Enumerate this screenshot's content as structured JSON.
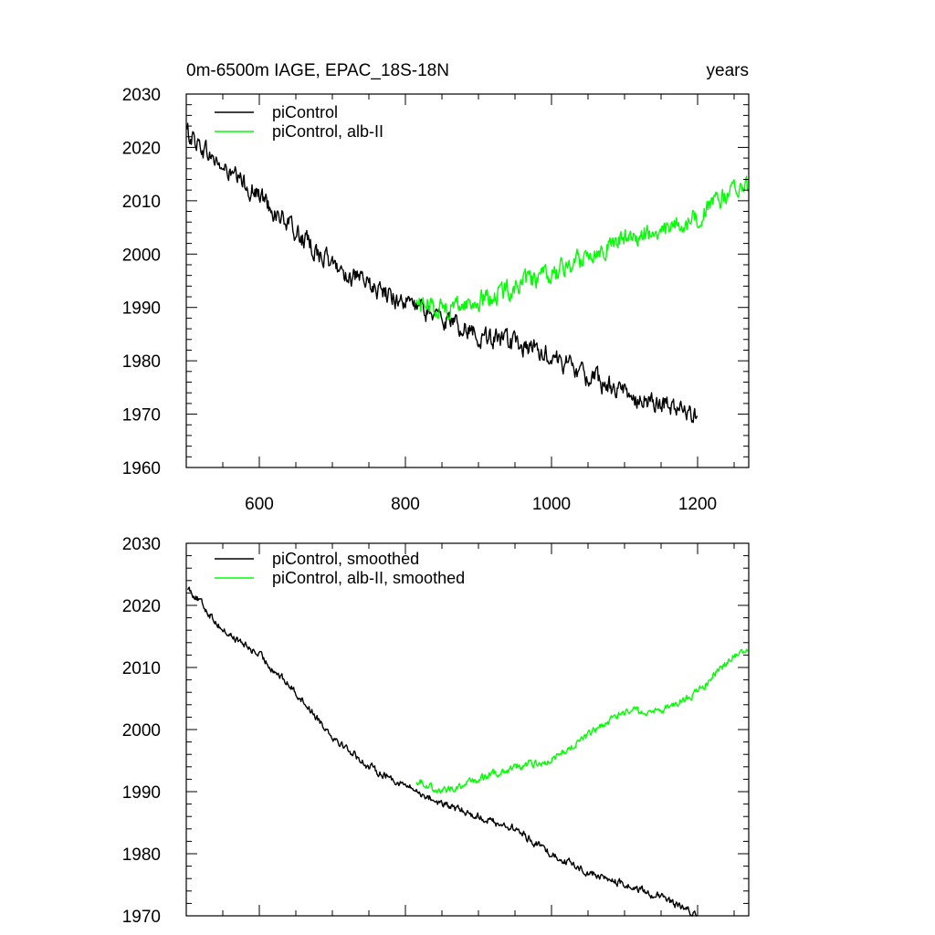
{
  "chart_data": [
    {
      "type": "line",
      "title_left": "0m-6500m IAGE, EPAC_18S-18N",
      "title_right": "years",
      "xlim": [
        500,
        1270
      ],
      "ylim": [
        1960,
        2030
      ],
      "x_ticks": [
        600,
        800,
        1000,
        1200
      ],
      "x_tick_labels": [
        "600",
        "800",
        "1000",
        "1200"
      ],
      "y_ticks": [
        1960,
        1970,
        1980,
        1990,
        2000,
        2010,
        2020,
        2030
      ],
      "y_tick_labels": [
        "1960",
        "1970",
        "1980",
        "1990",
        "2000",
        "2010",
        "2020",
        "2030"
      ],
      "legend_position": "top-left",
      "series": [
        {
          "name": "piControl",
          "color": "#000000",
          "x_range": [
            501,
            1200
          ],
          "noise_amplitude": 1.5,
          "anchors": [
            [
              501,
              2023
            ],
            [
              550,
              2016
            ],
            [
              600,
              2011
            ],
            [
              650,
              2004
            ],
            [
              700,
              1998
            ],
            [
              750,
              1994
            ],
            [
              800,
              1991
            ],
            [
              850,
              1988
            ],
            [
              900,
              1985
            ],
            [
              950,
              1983
            ],
            [
              1000,
              1981
            ],
            [
              1050,
              1977
            ],
            [
              1100,
              1974
            ],
            [
              1150,
              1972
            ],
            [
              1200,
              1970
            ]
          ]
        },
        {
          "name": "piControl, alb-II",
          "color": "#00ff00",
          "x_range": [
            815,
            1270
          ],
          "noise_amplitude": 1.5,
          "anchors": [
            [
              815,
              1991
            ],
            [
              850,
              1990
            ],
            [
              900,
              1991
            ],
            [
              950,
              1994
            ],
            [
              1000,
              1996
            ],
            [
              1050,
              2000
            ],
            [
              1100,
              2003
            ],
            [
              1150,
              2004
            ],
            [
              1200,
              2007
            ],
            [
              1250,
              2012
            ],
            [
              1270,
              2013
            ]
          ]
        }
      ]
    },
    {
      "type": "line",
      "xlim": [
        500,
        1270
      ],
      "ylim": [
        1970,
        2030
      ],
      "x_ticks": [
        600,
        800,
        1000,
        1200
      ],
      "y_ticks": [
        1970,
        1980,
        1990,
        2000,
        2010,
        2020,
        2030
      ],
      "y_tick_labels": [
        "1970",
        "1980",
        "1990",
        "2000",
        "2010",
        "2020",
        "2030"
      ],
      "legend_position": "top-left",
      "series": [
        {
          "name": "piControl, smoothed",
          "color": "#000000",
          "x_range": [
            502,
            1200
          ],
          "noise_amplitude": 0.5,
          "anchors": [
            [
              502,
              2023
            ],
            [
              550,
              2016
            ],
            [
              600,
              2012
            ],
            [
              650,
              2006
            ],
            [
              700,
              1999
            ],
            [
              750,
              1994
            ],
            [
              800,
              1991
            ],
            [
              850,
              1988
            ],
            [
              900,
              1986
            ],
            [
              950,
              1984
            ],
            [
              1000,
              1980
            ],
            [
              1050,
              1977
            ],
            [
              1100,
              1975
            ],
            [
              1150,
              1973
            ],
            [
              1200,
              1970
            ]
          ]
        },
        {
          "name": "piControl, alb-II, smoothed",
          "color": "#00ff00",
          "x_range": [
            815,
            1270
          ],
          "noise_amplitude": 0.5,
          "anchors": [
            [
              815,
              1992
            ],
            [
              850,
              1990
            ],
            [
              900,
              1992
            ],
            [
              950,
              1994
            ],
            [
              1000,
              1995
            ],
            [
              1050,
              1999
            ],
            [
              1100,
              2003
            ],
            [
              1150,
              2003
            ],
            [
              1200,
              2006
            ],
            [
              1250,
              2012
            ],
            [
              1270,
              2013
            ]
          ]
        }
      ]
    }
  ]
}
